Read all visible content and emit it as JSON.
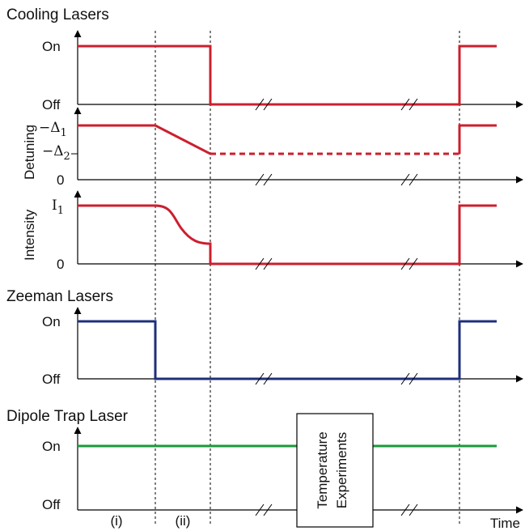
{
  "colors": {
    "cooling": "#cc1f2e",
    "zeeman": "#1f2f7a",
    "dipole": "#1a9a3a",
    "axis": "#000000"
  },
  "cooling_lasers": {
    "title": "Cooling Lasers",
    "on": "On",
    "off": "Off",
    "detuning": {
      "axis_label": "Detuning",
      "level1": "−Δ",
      "sub1": "1",
      "level2": "−Δ",
      "sub2": "2",
      "zero": "0"
    },
    "intensity": {
      "axis_label": "Intensity",
      "level1": "I",
      "sub1": "1",
      "zero": "0"
    }
  },
  "zeeman_lasers": {
    "title": "Zeeman Lasers",
    "on": "On",
    "off": "Off"
  },
  "dipole_trap": {
    "title": "Dipole Trap Laser",
    "on": "On",
    "off": "Off",
    "box_line1": "Temperature",
    "box_line2": "Experiments"
  },
  "phases": [
    "(i)",
    "(ii)"
  ],
  "time_label": "Time"
}
